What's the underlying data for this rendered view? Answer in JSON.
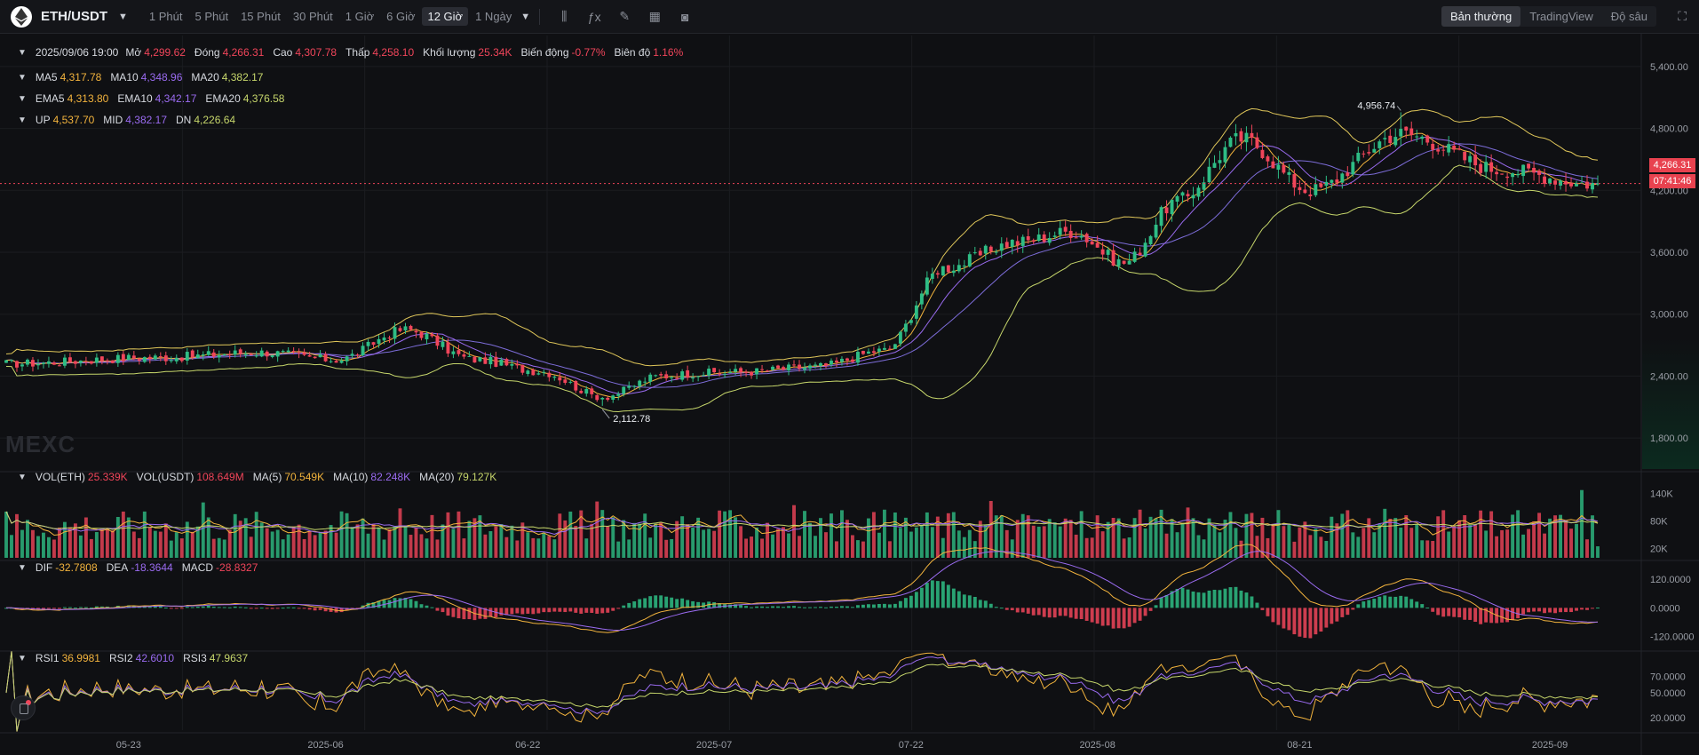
{
  "header": {
    "symbol": "ETH/USDT",
    "caret": "▼",
    "intervals": [
      "1 Phút",
      "5 Phút",
      "15 Phút",
      "30 Phút",
      "1 Giờ",
      "6 Giờ",
      "12 Giờ",
      "1 Ngày"
    ],
    "active_interval": "12 Giờ",
    "interval_caret": "▼",
    "tools": [
      "candle-type-icon",
      "indicator-icon",
      "draw-icon",
      "layout-icon",
      "camera-icon"
    ],
    "views": [
      "Bản thường",
      "TradingView",
      "Độ sâu"
    ],
    "active_view": "Bản thường"
  },
  "ohlc": {
    "date": "2025/09/06 19:00",
    "open_label": "Mở",
    "open": "4,299.62",
    "close_label": "Đóng",
    "close": "4,266.31",
    "high_label": "Cao",
    "high": "4,307.78",
    "low_label": "Thấp",
    "low": "4,258.10",
    "volume_label": "Khối lượng",
    "volume": "25.34K",
    "change_label": "Biến động",
    "change": "-0.77%",
    "amplitude_label": "Biên độ",
    "amplitude": "1.16%"
  },
  "ma": {
    "ma5_label": "MA5",
    "ma5": "4,317.78",
    "ma10_label": "MA10",
    "ma10": "4,348.96",
    "ma20_label": "MA20",
    "ma20": "4,382.17"
  },
  "ema": {
    "ema5_label": "EMA5",
    "ema5": "4,313.80",
    "ema10_label": "EMA10",
    "ema10": "4,342.17",
    "ema20_label": "EMA20",
    "ema20": "4,376.58"
  },
  "boll": {
    "up_label": "UP",
    "up": "4,537.70",
    "mid_label": "MID",
    "mid": "4,382.17",
    "dn_label": "DN",
    "dn": "4,226.64"
  },
  "vol": {
    "vol_eth_label": "VOL(ETH)",
    "vol_eth": "25.339K",
    "vol_usdt_label": "VOL(USDT)",
    "vol_usdt": "108.649M",
    "ma5_label": "MA(5)",
    "ma5": "70.549K",
    "ma10_label": "MA(10)",
    "ma10": "82.248K",
    "ma20_label": "MA(20)",
    "ma20": "79.127K"
  },
  "macd": {
    "dif_label": "DIF",
    "dif": "-32.7808",
    "dea_label": "DEA",
    "dea": "-18.3644",
    "macd_label": "MACD",
    "macd": "-28.8327"
  },
  "rsi": {
    "rsi1_label": "RSI1",
    "rsi1": "36.9981",
    "rsi2_label": "RSI2",
    "rsi2": "42.6010",
    "rsi3_label": "RSI3",
    "rsi3": "47.9637"
  },
  "watermark": "MEXC",
  "current_price": "4,266.31",
  "countdown": "07:41:46",
  "colors": {
    "up": "#2ebd85",
    "down": "#f0455a",
    "ma5": "#f2b33d",
    "ma10": "#9a6bf0",
    "ma20": "#c6d66b",
    "boll": "#e0c75a"
  },
  "chart_data": [
    {
      "type": "candlestick",
      "title": "ETH/USDT 12 Giờ",
      "x_ticks": [
        "05-23",
        "2025-06",
        "06-22",
        "2025-07",
        "07-22",
        "2025-08",
        "08-21",
        "2025-09"
      ],
      "y_ticks": [
        "5,400.00",
        "4,800.00",
        "4,200.00",
        "3,600.00",
        "3,000.00",
        "2,400.00",
        "1,800.00"
      ],
      "ylim": [
        1500,
        5700
      ],
      "annotations": {
        "high": "4,956.74",
        "low": "2,112.78"
      },
      "anchor_points": {
        "index": [
          0,
          28,
          48,
          62,
          75,
          88,
          100,
          112,
          123,
          130,
          138,
          152,
          165,
          176,
          190,
          200,
          210,
          220,
          232,
          245,
          262,
          281,
          298
        ],
        "close": [
          2520,
          2580,
          2630,
          2560,
          2850,
          2560,
          2450,
          2200,
          2400,
          2430,
          2440,
          2490,
          2650,
          3450,
          3700,
          3800,
          3500,
          4100,
          4700,
          4200,
          4750,
          4400,
          4266
        ]
      }
    },
    {
      "type": "bar",
      "title": "VOL(ETH)",
      "y_ticks": [
        "140K",
        "80K",
        "20K"
      ],
      "ylim": [
        0,
        170
      ]
    },
    {
      "type": "bar+line",
      "title": "MACD",
      "y_ticks": [
        "120.0000",
        "0.0000",
        "-120.0000"
      ],
      "ylim": [
        -170,
        180
      ]
    },
    {
      "type": "line",
      "title": "RSI",
      "y_ticks": [
        "70.0000",
        "50.0000",
        "20.0000"
      ],
      "ylim": [
        5,
        95
      ]
    }
  ]
}
